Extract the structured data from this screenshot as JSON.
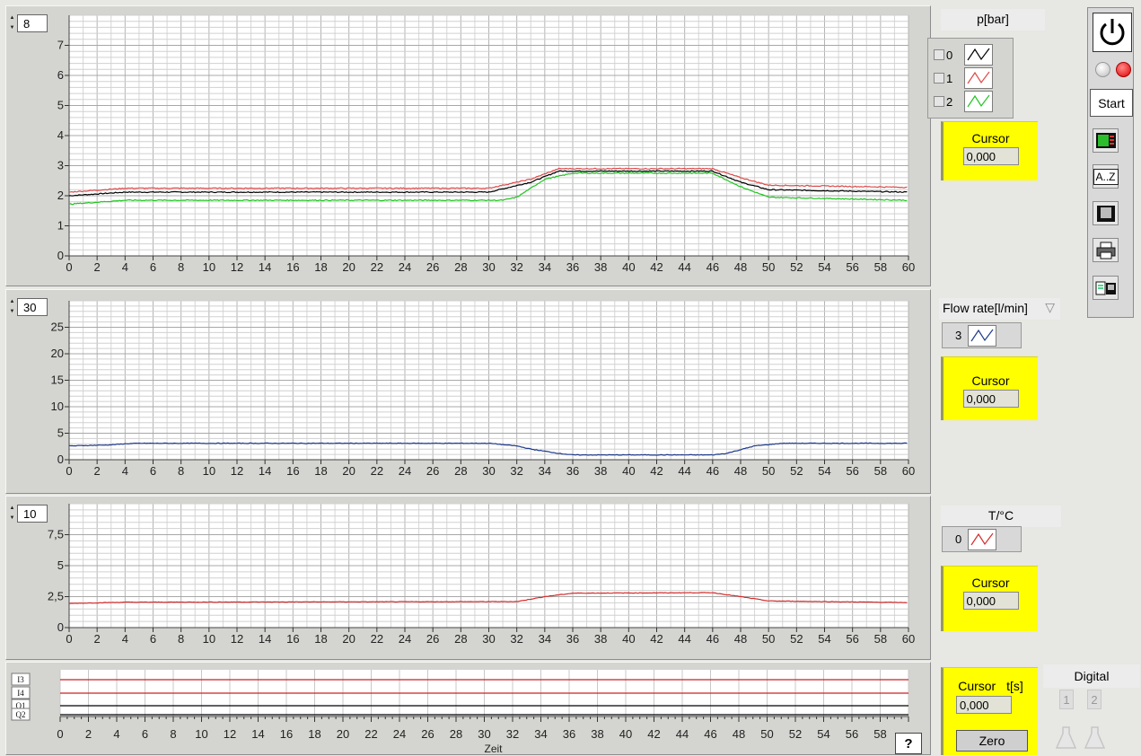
{
  "charts": [
    {
      "id": "pressure",
      "scale_value": "8",
      "y_max": 8,
      "y_ticks": [
        {
          "v": 0,
          "label": "0"
        },
        {
          "v": 1,
          "label": "1"
        },
        {
          "v": 2,
          "label": "2"
        },
        {
          "v": 3,
          "label": "3"
        },
        {
          "v": 4,
          "label": "4"
        },
        {
          "v": 5,
          "label": "5"
        },
        {
          "v": 6,
          "label": "6"
        },
        {
          "v": 7,
          "label": "7"
        }
      ],
      "series": [
        {
          "color": "#000000",
          "points": [
            [
              0,
              2.0
            ],
            [
              4,
              2.12
            ],
            [
              30,
              2.12
            ],
            [
              33,
              2.45
            ],
            [
              35,
              2.82
            ],
            [
              46,
              2.82
            ],
            [
              48,
              2.45
            ],
            [
              50,
              2.2
            ],
            [
              60,
              2.12
            ]
          ]
        },
        {
          "color": "#dd4a4a",
          "points": [
            [
              0,
              2.12
            ],
            [
              4,
              2.25
            ],
            [
              30,
              2.25
            ],
            [
              33,
              2.55
            ],
            [
              35,
              2.9
            ],
            [
              46,
              2.9
            ],
            [
              48,
              2.6
            ],
            [
              50,
              2.35
            ],
            [
              60,
              2.28
            ]
          ]
        },
        {
          "color": "#21c421",
          "points": [
            [
              0,
              1.72
            ],
            [
              4,
              1.85
            ],
            [
              31,
              1.85
            ],
            [
              32,
              1.95
            ],
            [
              34,
              2.55
            ],
            [
              36,
              2.75
            ],
            [
              46,
              2.75
            ],
            [
              48,
              2.3
            ],
            [
              50,
              1.95
            ],
            [
              60,
              1.85
            ]
          ]
        }
      ]
    },
    {
      "id": "flow",
      "scale_value": "30",
      "y_max": 30,
      "y_ticks": [
        {
          "v": 0,
          "label": "0"
        },
        {
          "v": 5,
          "label": "5"
        },
        {
          "v": 10,
          "label": "10"
        },
        {
          "v": 15,
          "label": "15"
        },
        {
          "v": 20,
          "label": "20"
        },
        {
          "v": 25,
          "label": "25"
        }
      ],
      "series": [
        {
          "color": "#1e3a8c",
          "points": [
            [
              0,
              2.6
            ],
            [
              3,
              2.8
            ],
            [
              4,
              3.0
            ],
            [
              5,
              3.1
            ],
            [
              30,
              3.1
            ],
            [
              32,
              2.6
            ],
            [
              33,
              2.0
            ],
            [
              35,
              1.2
            ],
            [
              36,
              0.9
            ],
            [
              46,
              0.9
            ],
            [
              47,
              1.2
            ],
            [
              49,
              2.6
            ],
            [
              51,
              3.1
            ],
            [
              60,
              3.1
            ]
          ]
        }
      ]
    },
    {
      "id": "temperature",
      "scale_value": "10",
      "y_max": 10,
      "y_ticks": [
        {
          "v": 0,
          "label": "0"
        },
        {
          "v": 2.5,
          "label": "2,5"
        },
        {
          "v": 5,
          "label": "5"
        },
        {
          "v": 7.5,
          "label": "7,5"
        }
      ],
      "series": [
        {
          "color": "#d52b2b",
          "points": [
            [
              0,
              1.95
            ],
            [
              4,
              2.05
            ],
            [
              32,
              2.1
            ],
            [
              34,
              2.5
            ],
            [
              36,
              2.78
            ],
            [
              46,
              2.82
            ],
            [
              48,
              2.5
            ],
            [
              50,
              2.15
            ],
            [
              60,
              2.02
            ]
          ]
        }
      ]
    }
  ],
  "digital": {
    "channels": [
      {
        "label": "I3",
        "color": "#cc2222"
      },
      {
        "label": "I4",
        "color": "#cc2222"
      },
      {
        "label": "Q1",
        "color": "#000000"
      },
      {
        "label": "Q2",
        "color": "#000000"
      }
    ],
    "x_label": "Zeit",
    "help_label": "?"
  },
  "x_ticks": [
    "0",
    "2",
    "4",
    "6",
    "8",
    "10",
    "12",
    "14",
    "16",
    "18",
    "20",
    "22",
    "24",
    "26",
    "28",
    "30",
    "32",
    "34",
    "36",
    "38",
    "40",
    "42",
    "44",
    "46",
    "48",
    "50",
    "52",
    "54",
    "56",
    "58",
    "60"
  ],
  "pressure_legend": {
    "title": "p[bar]",
    "items": [
      {
        "label": "0",
        "color": "#000000"
      },
      {
        "label": "1",
        "color": "#dd4a4a"
      },
      {
        "label": "2",
        "color": "#21c421"
      }
    ]
  },
  "flow_legend": {
    "title": "Flow rate[l/min]",
    "item_label": "3",
    "color": "#1e3a8c"
  },
  "temp_legend": {
    "title": "T/°C",
    "item_label": "0",
    "color": "#d52b2b"
  },
  "cursors": {
    "pressure": "0,000",
    "flow": "0,000",
    "temperature": "0,000",
    "time": "0,000"
  },
  "cursor_label": "Cursor",
  "time_cursor_unit": "t[s]",
  "zero_label": "Zero",
  "digital_panel": {
    "title": "Digital",
    "items": [
      "1",
      "2"
    ]
  },
  "toolbar": {
    "start_label": "Start",
    "sort_label": "A..Z"
  }
}
